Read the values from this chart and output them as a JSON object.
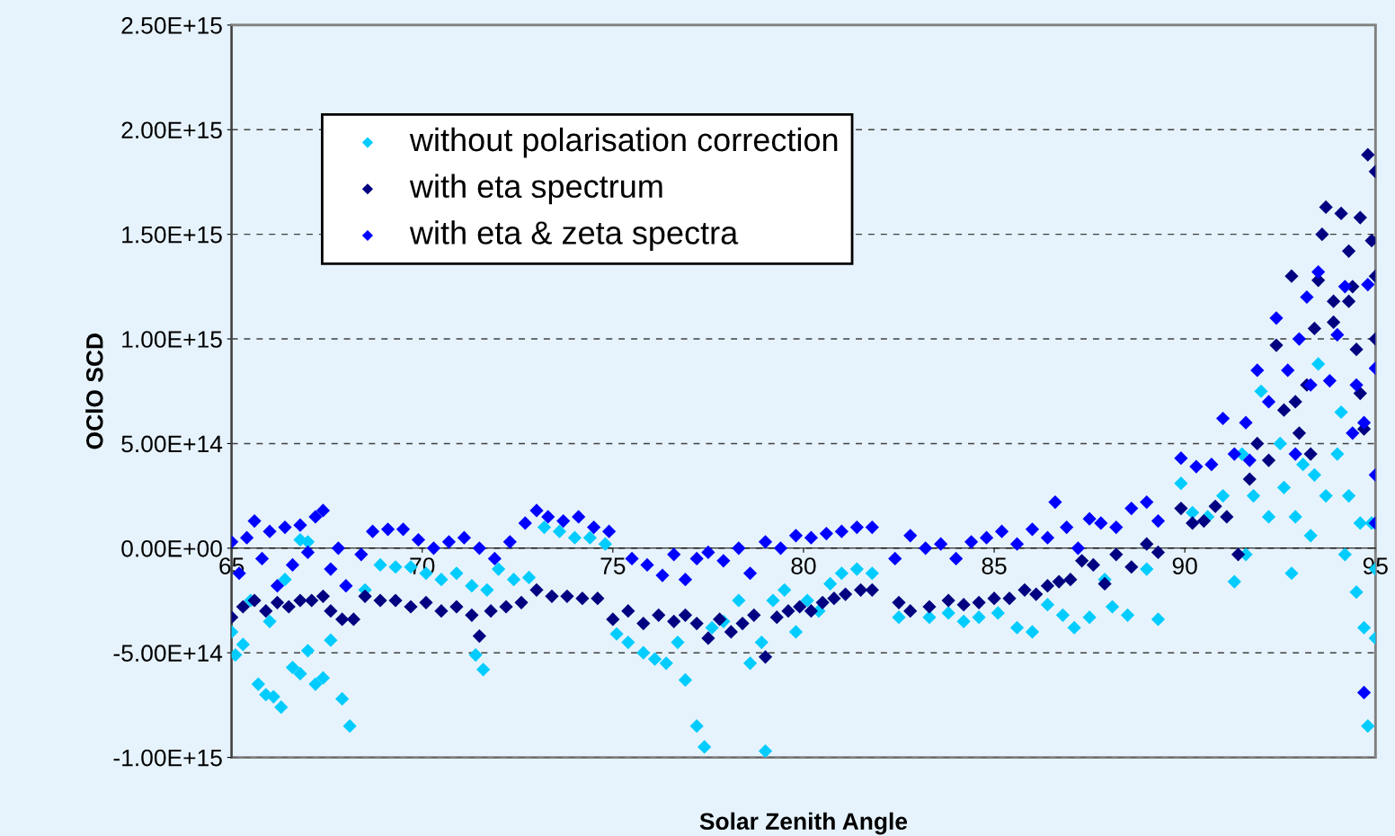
{
  "chart_data": {
    "type": "scatter",
    "xlabel": "Solar Zenith Angle",
    "ylabel": "OClO SCD",
    "xlim": [
      65,
      95
    ],
    "xticks": [
      65,
      70,
      75,
      80,
      85,
      90,
      95
    ],
    "ylim": [
      -1000000000000000.0,
      2500000000000000.0
    ],
    "yticks": [
      {
        "value": -1000000000000000.0,
        "label": "-1.00E+15"
      },
      {
        "value": -500000000000000.0,
        "label": "-5.00E+14"
      },
      {
        "value": 0,
        "label": "0.00E+00"
      },
      {
        "value": 500000000000000.0,
        "label": "5.00E+14"
      },
      {
        "value": 1000000000000000.0,
        "label": "1.00E+15"
      },
      {
        "value": 1500000000000000.0,
        "label": "1.50E+15"
      },
      {
        "value": 2000000000000000.0,
        "label": "2.00E+15"
      },
      {
        "value": 2500000000000000.0,
        "label": "2.50E+15"
      }
    ],
    "grid": "y",
    "legend": "top left",
    "marker": "diamond",
    "series": [
      {
        "name": "without polarisation correction",
        "color": "#00ccff",
        "x": [
          65.0,
          65.1,
          65.3,
          65.5,
          65.7,
          65.9,
          66.1,
          66.3,
          66.0,
          66.4,
          66.6,
          66.8,
          67.0,
          67.2,
          67.4,
          67.6,
          67.9,
          68.1,
          67.0,
          66.8,
          68.5,
          68.9,
          69.3,
          69.7,
          70.1,
          70.5,
          70.9,
          71.3,
          71.7,
          71.4,
          71.6,
          72.0,
          72.4,
          72.8,
          73.2,
          73.6,
          74.0,
          74.4,
          74.8,
          75.1,
          75.4,
          75.8,
          76.1,
          76.4,
          76.7,
          76.9,
          77.2,
          77.4,
          77.6,
          77.9,
          78.3,
          78.6,
          78.9,
          79.2,
          79.5,
          79.8,
          80.1,
          80.4,
          80.7,
          81.0,
          81.4,
          81.8,
          79.0,
          82.5,
          83.3,
          83.8,
          84.2,
          84.6,
          85.1,
          85.6,
          86.0,
          86.4,
          86.8,
          87.1,
          87.5,
          87.9,
          88.1,
          88.5,
          89.0,
          89.3,
          89.9,
          90.2,
          90.6,
          91.0,
          91.3,
          91.6,
          91.8,
          92.2,
          92.6,
          92.9,
          93.1,
          93.4,
          93.7,
          94.0,
          94.3,
          94.6,
          94.9,
          95.0,
          92.0,
          93.5,
          94.1,
          93.3,
          92.8,
          91.5,
          92.5,
          94.5,
          94.7,
          95.0,
          94.8,
          94.2
        ],
        "values": [
          -400000000000000.0,
          -510000000000000.0,
          -460000000000000.0,
          -250000000000000.0,
          -650000000000000.0,
          -700000000000000.0,
          -710000000000000.0,
          -760000000000000.0,
          -350000000000000.0,
          -150000000000000.0,
          -570000000000000.0,
          -600000000000000.0,
          -490000000000000.0,
          -650000000000000.0,
          -620000000000000.0,
          -440000000000000.0,
          -720000000000000.0,
          -850000000000000.0,
          30000000000000.0,
          40000000000000.0,
          -200000000000000.0,
          -80000000000000.0,
          -90000000000000.0,
          -90000000000000.0,
          -120000000000000.0,
          -150000000000000.0,
          -120000000000000.0,
          -180000000000000.0,
          -200000000000000.0,
          -510000000000000.0,
          -580000000000000.0,
          -100000000000000.0,
          -150000000000000.0,
          -140000000000000.0,
          100000000000000.0,
          80000000000000.0,
          50000000000000.0,
          50000000000000.0,
          20000000000000.0,
          -410000000000000.0,
          -450000000000000.0,
          -500000000000000.0,
          -530000000000000.0,
          -550000000000000.0,
          -450000000000000.0,
          -630000000000000.0,
          -850000000000000.0,
          -950000000000000.0,
          -380000000000000.0,
          -350000000000000.0,
          -250000000000000.0,
          -550000000000000.0,
          -450000000000000.0,
          -250000000000000.0,
          -200000000000000.0,
          -400000000000000.0,
          -250000000000000.0,
          -300000000000000.0,
          -170000000000000.0,
          -120000000000000.0,
          -100000000000000.0,
          -120000000000000.0,
          -970000000000000.0,
          -330000000000000.0,
          -330000000000000.0,
          -310000000000000.0,
          -350000000000000.0,
          -330000000000000.0,
          -310000000000000.0,
          -380000000000000.0,
          -400000000000000.0,
          -270000000000000.0,
          -320000000000000.0,
          -380000000000000.0,
          -330000000000000.0,
          -150000000000000.0,
          -280000000000000.0,
          -320000000000000.0,
          -100000000000000.0,
          -340000000000000.0,
          310000000000000.0,
          170000000000000.0,
          150000000000000.0,
          250000000000000.0,
          -160000000000000.0,
          -30000000000000.0,
          250000000000000.0,
          150000000000000.0,
          290000000000000.0,
          150000000000000.0,
          400000000000000.0,
          350000000000000.0,
          250000000000000.0,
          450000000000000.0,
          250000000000000.0,
          120000000000000.0,
          120000000000000.0,
          -100000000000000.0,
          750000000000000.0,
          880000000000000.0,
          650000000000000.0,
          60000000000000.0,
          -120000000000000.0,
          450000000000000.0,
          500000000000000.0,
          -210000000000000.0,
          -380000000000000.0,
          -430000000000000.0,
          -850000000000000.0,
          -30000000000000.0
        ]
      },
      {
        "name": "with eta spectrum",
        "color": "#000080",
        "x": [
          65.0,
          65.3,
          65.6,
          65.9,
          66.2,
          66.5,
          66.8,
          67.1,
          67.4,
          67.6,
          67.9,
          68.2,
          68.5,
          68.9,
          69.3,
          69.7,
          70.1,
          70.5,
          70.9,
          71.3,
          71.5,
          71.8,
          72.2,
          72.6,
          73.0,
          73.4,
          73.8,
          74.2,
          74.6,
          75.0,
          75.4,
          75.8,
          76.2,
          76.6,
          76.9,
          77.2,
          77.5,
          77.8,
          78.1,
          78.4,
          78.7,
          79.0,
          79.3,
          79.6,
          79.9,
          80.2,
          80.5,
          80.8,
          81.1,
          81.5,
          81.8,
          82.5,
          82.8,
          83.3,
          83.8,
          84.2,
          84.6,
          85.0,
          85.4,
          85.8,
          86.1,
          86.4,
          86.7,
          87.0,
          87.3,
          87.6,
          87.9,
          88.2,
          88.6,
          89.0,
          89.3,
          89.9,
          90.2,
          90.5,
          90.8,
          91.1,
          91.4,
          91.7,
          91.9,
          92.2,
          92.4,
          92.6,
          92.8,
          93.0,
          93.2,
          93.4,
          93.6,
          93.7,
          93.9,
          94.1,
          94.3,
          94.5,
          94.6,
          94.7,
          94.8,
          95.0,
          95.0,
          95.0,
          94.9,
          94.3,
          93.5,
          93.9,
          92.9,
          93.3,
          94.4,
          94.6
        ],
        "values": [
          -330000000000000.0,
          -280000000000000.0,
          -250000000000000.0,
          -300000000000000.0,
          -260000000000000.0,
          -280000000000000.0,
          -250000000000000.0,
          -250000000000000.0,
          -230000000000000.0,
          -300000000000000.0,
          -340000000000000.0,
          -340000000000000.0,
          -230000000000000.0,
          -250000000000000.0,
          -250000000000000.0,
          -280000000000000.0,
          -260000000000000.0,
          -300000000000000.0,
          -280000000000000.0,
          -320000000000000.0,
          -420000000000000.0,
          -300000000000000.0,
          -280000000000000.0,
          -260000000000000.0,
          -200000000000000.0,
          -230000000000000.0,
          -230000000000000.0,
          -240000000000000.0,
          -240000000000000.0,
          -340000000000000.0,
          -300000000000000.0,
          -360000000000000.0,
          -320000000000000.0,
          -350000000000000.0,
          -320000000000000.0,
          -360000000000000.0,
          -430000000000000.0,
          -340000000000000.0,
          -400000000000000.0,
          -360000000000000.0,
          -320000000000000.0,
          -520000000000000.0,
          -330000000000000.0,
          -300000000000000.0,
          -280000000000000.0,
          -300000000000000.0,
          -260000000000000.0,
          -240000000000000.0,
          -220000000000000.0,
          -200000000000000.0,
          -200000000000000.0,
          -260000000000000.0,
          -300000000000000.0,
          -280000000000000.0,
          -250000000000000.0,
          -270000000000000.0,
          -260000000000000.0,
          -240000000000000.0,
          -240000000000000.0,
          -200000000000000.0,
          -220000000000000.0,
          -180000000000000.0,
          -160000000000000.0,
          -150000000000000.0,
          -60000000000000.0,
          -80000000000000.0,
          -170000000000000.0,
          -30000000000000.0,
          -90000000000000.0,
          20000000000000.0,
          -20000000000000.0,
          190000000000000.0,
          120000000000000.0,
          130000000000000.0,
          200000000000000.0,
          150000000000000.0,
          -30000000000000.0,
          330000000000000.0,
          500000000000000.0,
          420000000000000.0,
          970000000000000.0,
          660000000000000.0,
          1300000000000000.0,
          550000000000000.0,
          780000000000000.0,
          1050000000000000.0,
          1500000000000000.0,
          1630000000000000.0,
          1180000000000000.0,
          1600000000000000.0,
          1420000000000000.0,
          950000000000000.0,
          1580000000000000.0,
          570000000000000.0,
          1880000000000000.0,
          1800000000000000.0,
          1300000000000000.0,
          1000000000000000.0,
          1470000000000000.0,
          1180000000000000.0,
          1280000000000000.0,
          1080000000000000.0,
          700000000000000.0,
          450000000000000.0,
          1250000000000000.0,
          740000000000000.0
        ]
      },
      {
        "name": "with eta & zeta spectra",
        "color": "#0000ff",
        "x": [
          65.0,
          65.2,
          65.4,
          65.6,
          65.8,
          66.0,
          66.2,
          66.4,
          66.6,
          66.8,
          67.0,
          67.2,
          67.4,
          67.6,
          67.8,
          68.0,
          68.4,
          68.7,
          69.1,
          69.5,
          69.9,
          70.3,
          70.7,
          71.1,
          71.5,
          71.9,
          72.3,
          72.7,
          73.0,
          73.3,
          73.7,
          74.1,
          74.5,
          74.9,
          75.5,
          75.9,
          76.3,
          76.6,
          76.9,
          77.2,
          77.5,
          77.9,
          78.3,
          78.6,
          79.0,
          79.4,
          79.8,
          80.2,
          80.6,
          81.0,
          81.4,
          81.8,
          82.4,
          82.8,
          83.2,
          83.6,
          84.0,
          84.4,
          84.8,
          85.2,
          85.6,
          86.0,
          86.4,
          86.6,
          86.9,
          87.2,
          87.5,
          87.8,
          88.2,
          88.6,
          89.0,
          89.3,
          89.9,
          90.3,
          90.7,
          91.0,
          91.3,
          91.6,
          91.9,
          92.2,
          92.4,
          92.7,
          93.0,
          93.3,
          93.5,
          93.8,
          94.0,
          94.2,
          94.5,
          94.7,
          94.8,
          95.0,
          95.0,
          95.0,
          94.4,
          94.7,
          92.9,
          93.2,
          91.7
        ],
        "values": [
          30000000000000.0,
          -120000000000000.0,
          50000000000000.0,
          130000000000000.0,
          -50000000000000.0,
          80000000000000.0,
          -180000000000000.0,
          100000000000000.0,
          -80000000000000.0,
          110000000000000.0,
          -20000000000000.0,
          150000000000000.0,
          180000000000000.0,
          -100000000000000.0,
          0,
          -180000000000000.0,
          -30000000000000.0,
          80000000000000.0,
          90000000000000.0,
          90000000000000.0,
          40000000000000.0,
          0,
          30000000000000.0,
          50000000000000.0,
          0,
          -50000000000000.0,
          30000000000000.0,
          120000000000000.0,
          180000000000000.0,
          150000000000000.0,
          130000000000000.0,
          150000000000000.0,
          100000000000000.0,
          80000000000000.0,
          -50000000000000.0,
          -80000000000000.0,
          -130000000000000.0,
          -30000000000000.0,
          -150000000000000.0,
          -50000000000000.0,
          -20000000000000.0,
          -60000000000000.0,
          0,
          -120000000000000.0,
          30000000000000.0,
          0,
          60000000000000.0,
          50000000000000.0,
          70000000000000.0,
          80000000000000.0,
          100000000000000.0,
          100000000000000.0,
          -50000000000000.0,
          60000000000000.0,
          0,
          20000000000000.0,
          -50000000000000.0,
          30000000000000.0,
          50000000000000.0,
          80000000000000.0,
          20000000000000.0,
          90000000000000.0,
          50000000000000.0,
          220000000000000.0,
          100000000000000.0,
          0,
          140000000000000.0,
          120000000000000.0,
          100000000000000.0,
          190000000000000.0,
          220000000000000.0,
          130000000000000.0,
          430000000000000.0,
          390000000000000.0,
          400000000000000.0,
          620000000000000.0,
          450000000000000.0,
          600000000000000.0,
          850000000000000.0,
          700000000000000.0,
          1100000000000000.0,
          850000000000000.0,
          1000000000000000.0,
          780000000000000.0,
          1320000000000000.0,
          800000000000000.0,
          1020000000000000.0,
          1250000000000000.0,
          780000000000000.0,
          600000000000000.0,
          1260000000000000.0,
          860000000000000.0,
          350000000000000.0,
          120000000000000.0,
          550000000000000.0,
          -690000000000000.0,
          450000000000000.0,
          1200000000000000.0,
          420000000000000.0
        ]
      }
    ]
  }
}
